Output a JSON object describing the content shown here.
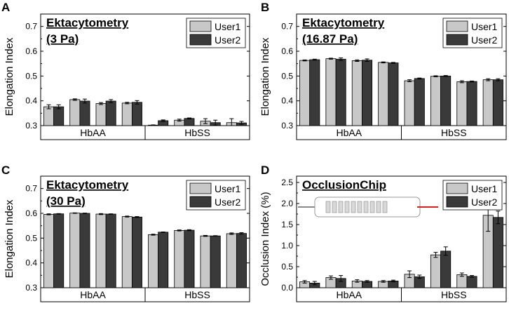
{
  "colors": {
    "user1": "#c8c8c8",
    "user2": "#3a3a3a",
    "axis": "#000000",
    "chip_outlet": "#d62020",
    "chip_inlet": "#888888"
  },
  "chart_data": [
    {
      "type": "bar",
      "panel_label": "A",
      "title": "Ektacytometry",
      "subtitle": "(3 Pa)",
      "ylabel": "Elongation Index",
      "ylim": [
        0.3,
        0.75
      ],
      "yticks": [
        "0.3",
        "0.4",
        "0.5",
        "0.6",
        "0.7"
      ],
      "groups": [
        "HbAA",
        "HbSS"
      ],
      "bars_per_group": 4,
      "legend": [
        "User1",
        "User2"
      ],
      "legend_position": "top-right",
      "series": [
        {
          "name": "User1",
          "values": [
            0.376,
            0.405,
            0.389,
            0.391,
            0.302,
            0.322,
            0.318,
            0.312
          ],
          "errors": [
            0.008,
            0.003,
            0.004,
            0.003,
            0.001,
            0.004,
            0.01,
            0.016
          ]
        },
        {
          "name": "User2",
          "values": [
            0.376,
            0.399,
            0.399,
            0.394,
            0.32,
            0.329,
            0.312,
            0.311
          ],
          "errors": [
            0.008,
            0.008,
            0.006,
            0.007,
            0.003,
            0.002,
            0.01,
            0.006
          ]
        }
      ]
    },
    {
      "type": "bar",
      "panel_label": "B",
      "title": "Ektacytometry",
      "subtitle": "(16.87 Pa)",
      "ylabel": "Elongation Index",
      "ylim": [
        0.3,
        0.75
      ],
      "yticks": [
        "0.3",
        "0.4",
        "0.5",
        "0.6",
        "0.7"
      ],
      "groups": [
        "HbAA",
        "HbSS"
      ],
      "bars_per_group": 4,
      "legend": [
        "User1",
        "User2"
      ],
      "legend_position": "top-right",
      "series": [
        {
          "name": "User1",
          "values": [
            0.563,
            0.57,
            0.562,
            0.555,
            0.481,
            0.499,
            0.477,
            0.485
          ],
          "errors": [
            0.002,
            0.002,
            0.003,
            0.002,
            0.004,
            0.002,
            0.004,
            0.004
          ]
        },
        {
          "name": "User2",
          "values": [
            0.566,
            0.568,
            0.564,
            0.553,
            0.49,
            0.5,
            0.478,
            0.485
          ],
          "errors": [
            0.002,
            0.005,
            0.005,
            0.002,
            0.002,
            0.002,
            0.002,
            0.004
          ]
        }
      ]
    },
    {
      "type": "bar",
      "panel_label": "C",
      "title": "Ektacytometry",
      "subtitle": "(30 Pa)",
      "ylabel": "Elongation Index",
      "ylim": [
        0.3,
        0.75
      ],
      "yticks": [
        "0.3",
        "0.4",
        "0.5",
        "0.6",
        "0.7"
      ],
      "groups": [
        "HbAA",
        "HbSS"
      ],
      "bars_per_group": 4,
      "legend": [
        "User1",
        "User2"
      ],
      "legend_position": "top-right",
      "series": [
        {
          "name": "User1",
          "values": [
            0.596,
            0.601,
            0.597,
            0.587,
            0.514,
            0.531,
            0.509,
            0.518
          ],
          "errors": [
            0.002,
            0.001,
            0.002,
            0.002,
            0.002,
            0.002,
            0.002,
            0.003
          ]
        },
        {
          "name": "User2",
          "values": [
            0.598,
            0.6,
            0.597,
            0.585,
            0.524,
            0.532,
            0.509,
            0.519
          ],
          "errors": [
            0.001,
            0.001,
            0.001,
            0.002,
            0.001,
            0.002,
            0.001,
            0.003
          ]
        }
      ]
    },
    {
      "type": "bar",
      "panel_label": "D",
      "title": "OcclusionChip",
      "subtitle": "",
      "ylabel": "Occlusion Index (%)",
      "ylim": [
        0,
        2.65
      ],
      "yticks": [
        "0.0",
        "0.5",
        "1.0",
        "1.5",
        "2.0",
        "2.5"
      ],
      "groups": [
        "HbAA",
        "HbSS"
      ],
      "bars_per_group": 4,
      "legend": [
        "User1",
        "User2"
      ],
      "legend_position": "top-right",
      "series": [
        {
          "name": "User1",
          "values": [
            0.14,
            0.24,
            0.16,
            0.15,
            0.32,
            0.78,
            0.31,
            1.72
          ],
          "errors": [
            0.03,
            0.04,
            0.03,
            0.02,
            0.08,
            0.06,
            0.04,
            0.38
          ]
        },
        {
          "name": "User2",
          "values": [
            0.11,
            0.22,
            0.15,
            0.16,
            0.26,
            0.87,
            0.27,
            1.67
          ],
          "errors": [
            0.04,
            0.07,
            0.02,
            0.02,
            0.04,
            0.1,
            0.02,
            0.15
          ]
        }
      ]
    }
  ]
}
